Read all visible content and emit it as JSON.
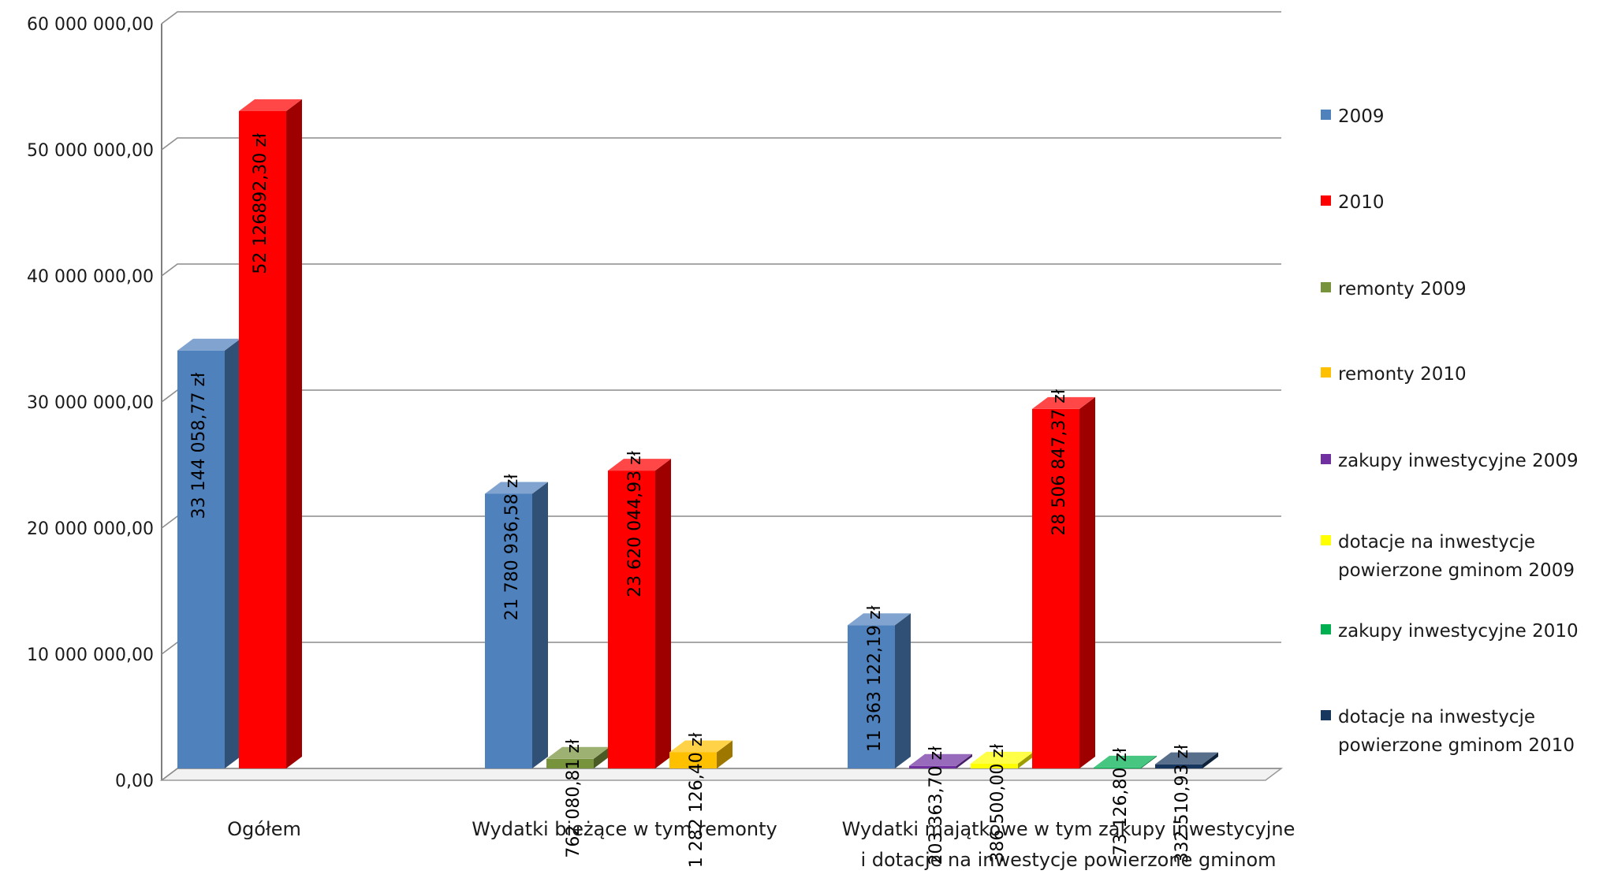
{
  "chart_data": {
    "type": "bar",
    "ylim": [
      0,
      60000000
    ],
    "y_ticks": [
      {
        "value": 0,
        "label": "0,00"
      },
      {
        "value": 10000000,
        "label": "10 000 000,00"
      },
      {
        "value": 20000000,
        "label": "20 000 000,00"
      },
      {
        "value": 30000000,
        "label": "30 000 000,00"
      },
      {
        "value": 40000000,
        "label": "40 000 000,00"
      },
      {
        "value": 50000000,
        "label": "50 000 000,00"
      },
      {
        "value": 60000000,
        "label": "60 000 000,00"
      }
    ],
    "grid": true,
    "legend_position": "right",
    "categories": [
      "Ogółem",
      "Wydatki bieżące w tym remonty",
      "Wydatki majątkowe w tym zakupy inwestycyjne i dotacje na inwestycje powierzone gminom"
    ],
    "category_labels": [
      [
        "Ogółem"
      ],
      [
        "Wydatki bieżące w tym remonty"
      ],
      [
        "Wydatki majątkowe w tym zakupy  inwestycyjne",
        "i dotacje na inwestycje powierzone gminom"
      ]
    ],
    "series": [
      {
        "name": "2009",
        "color": "#4F81BD"
      },
      {
        "name": "2010",
        "color": "#FF0000"
      },
      {
        "name": "remonty 2009",
        "color": "#77933C"
      },
      {
        "name": "remonty 2010",
        "color": "#FFC000"
      },
      {
        "name": "zakupy inwestycyjne 2009",
        "color": "#7030A0"
      },
      {
        "name": "dotacje na inwestycje\npowierzone gminom 2009",
        "color": "#FFFF00"
      },
      {
        "name": "zakupy inwestycyjne 2010",
        "color": "#00B050"
      },
      {
        "name": "dotacje na inwestycje\npowierzone gminom 2010",
        "color": "#17375E"
      }
    ],
    "bars": [
      {
        "category": 0,
        "series": 0,
        "value": 33144058.77,
        "label": "33 144 058,77 zł",
        "label_inside": true
      },
      {
        "category": 0,
        "series": 1,
        "value": 52126892.3,
        "label": "52 126892,30 zł",
        "label_inside": true
      },
      {
        "category": 1,
        "series": 0,
        "value": 21780936.58,
        "label": "21 780 936,58 zł",
        "label_inside": false
      },
      {
        "category": 1,
        "series": 2,
        "value": 762080.81,
        "label": "762 080,81 zł",
        "label_inside": false
      },
      {
        "category": 1,
        "series": 1,
        "value": 23620044.93,
        "label": "23 620 044,93 zł",
        "label_inside": false
      },
      {
        "category": 1,
        "series": 3,
        "value": 1282126.4,
        "label": "1 282 126,40 zł",
        "label_inside": false
      },
      {
        "category": 2,
        "series": 0,
        "value": 11363122.19,
        "label": "11 363 122,19 zł",
        "label_inside": false
      },
      {
        "category": 2,
        "series": 4,
        "value": 203363.7,
        "label": "203 363,70 zł",
        "label_inside": false
      },
      {
        "category": 2,
        "series": 5,
        "value": 386500.0,
        "label": "386 500,00 zł",
        "label_inside": false
      },
      {
        "category": 2,
        "series": 1,
        "value": 28506847.37,
        "label": "28 506 847,37 zł",
        "label_inside": false
      },
      {
        "category": 2,
        "series": 6,
        "value": 73126.8,
        "label": "73 126,80 zł",
        "label_inside": false
      },
      {
        "category": 2,
        "series": 7,
        "value": 332510.93,
        "label": "332 510,93 zł",
        "label_inside": false
      }
    ]
  }
}
